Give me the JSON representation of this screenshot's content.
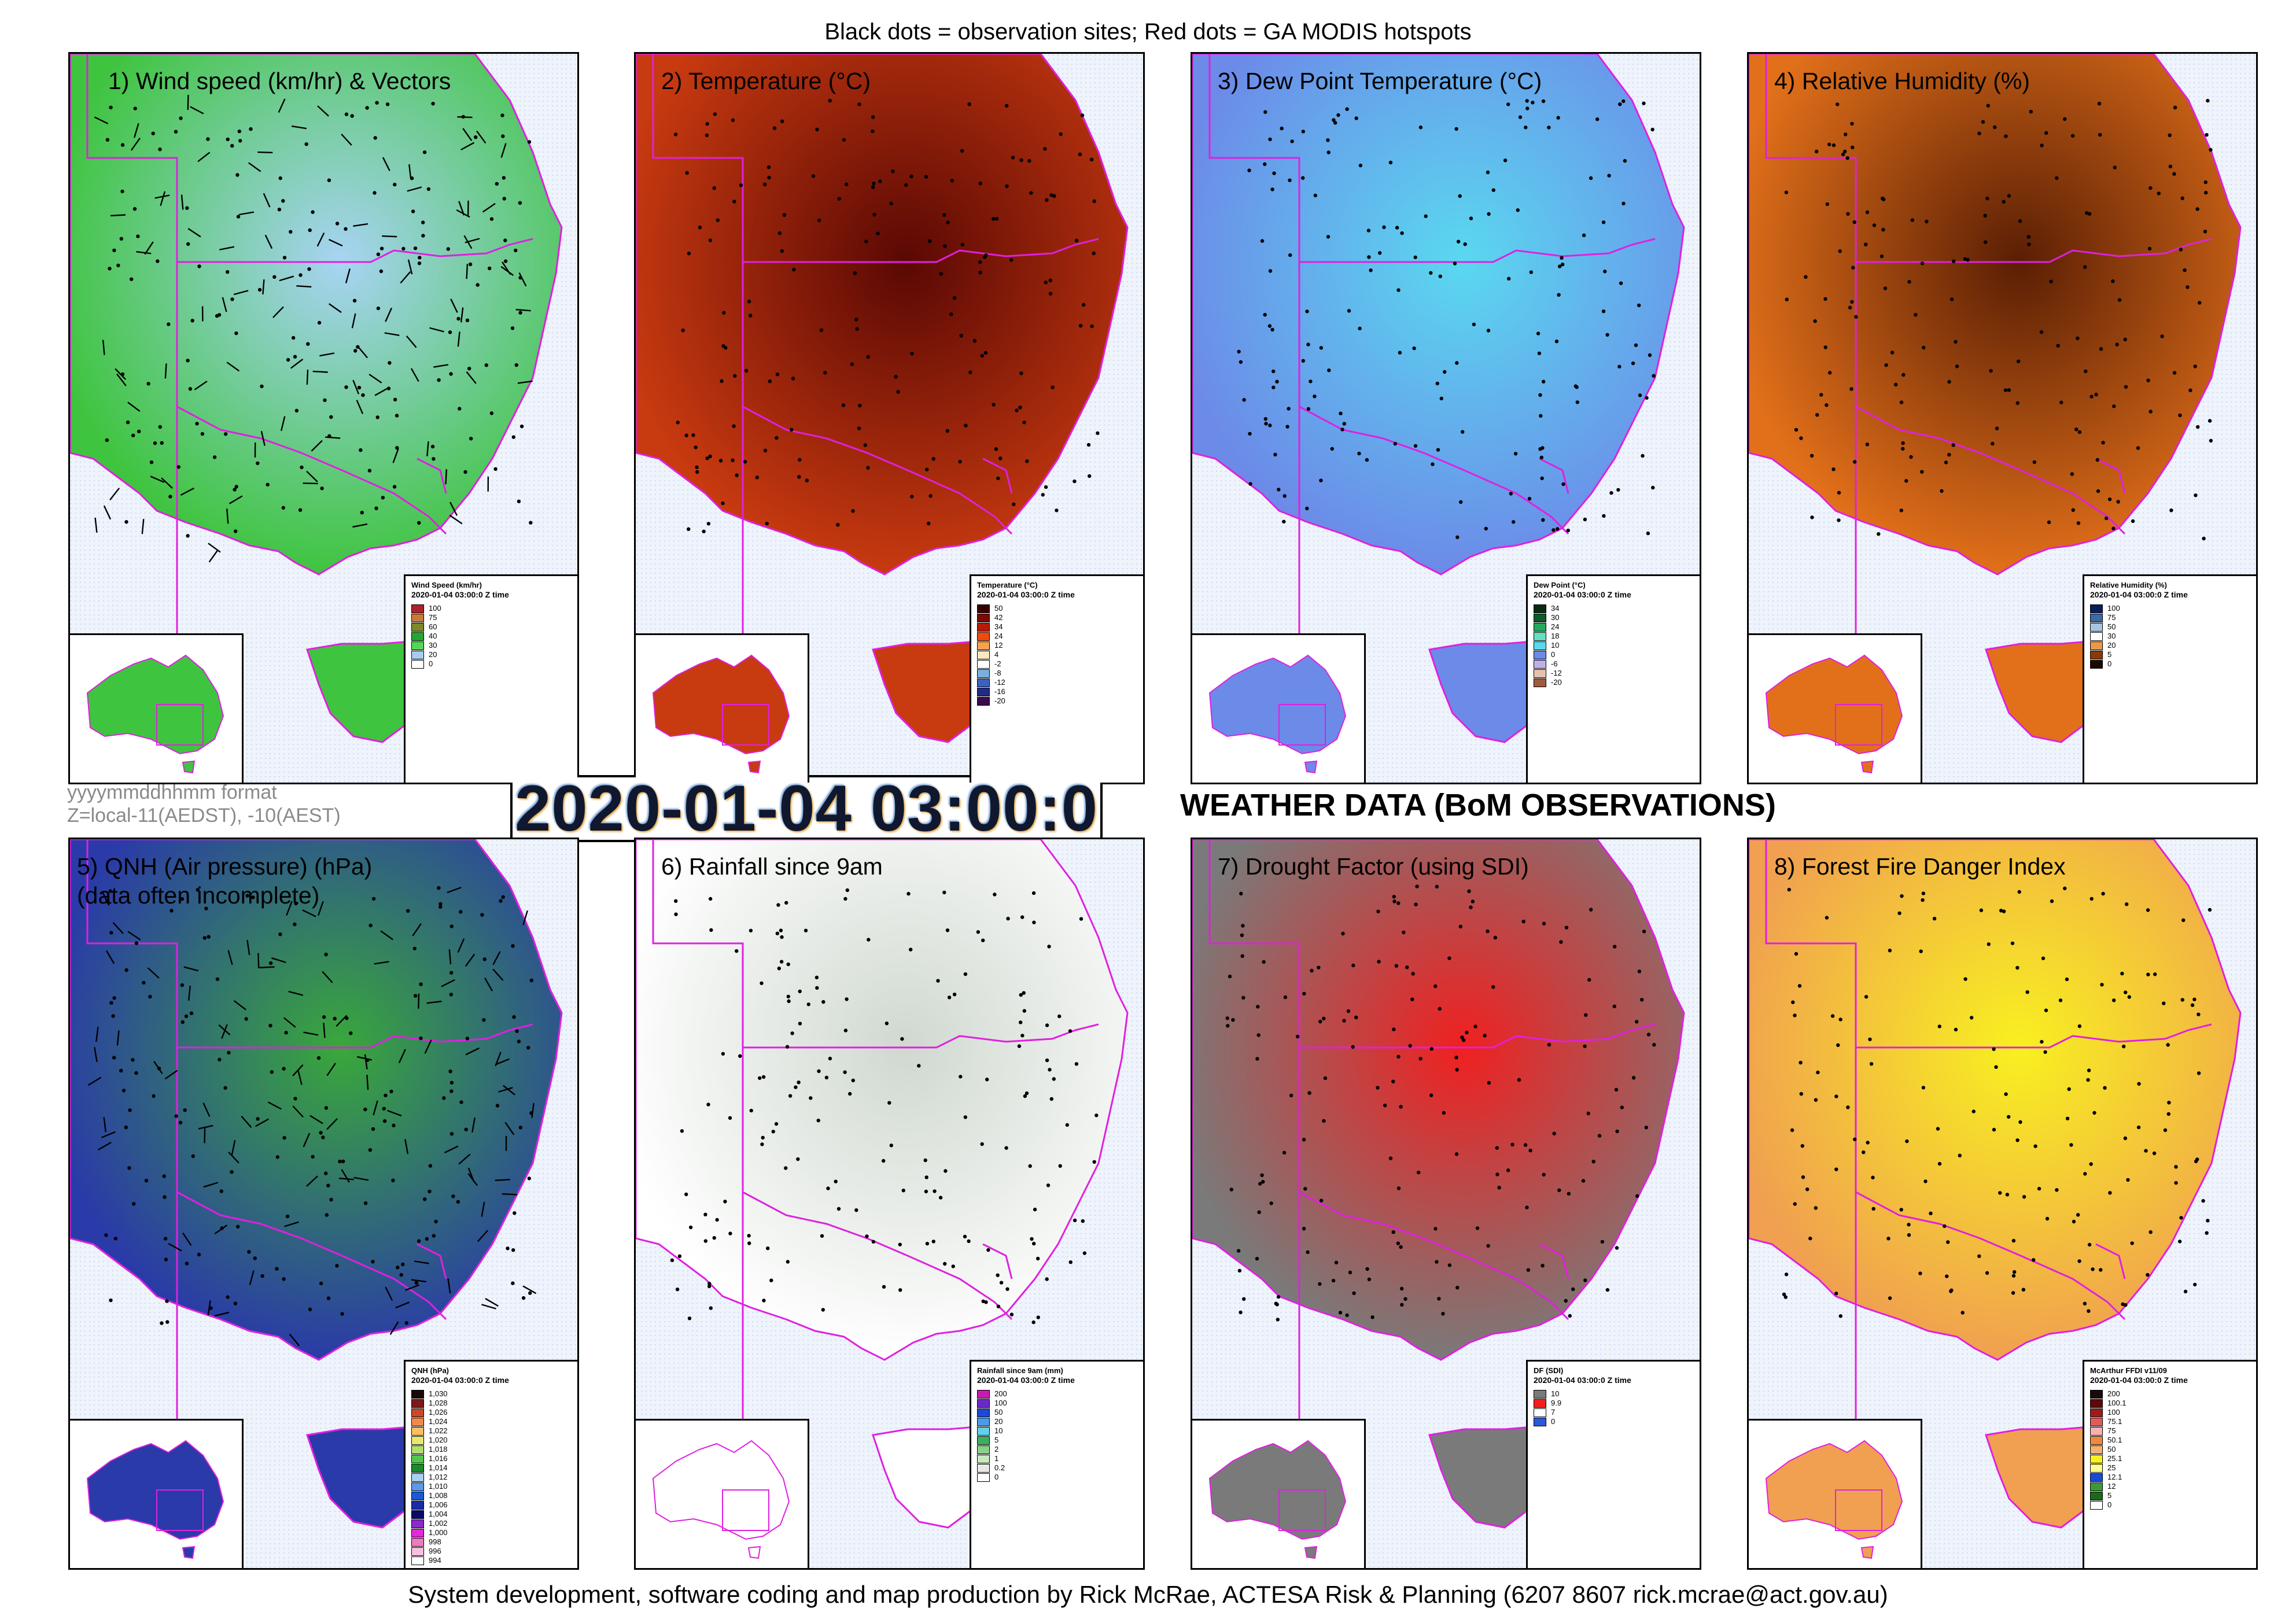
{
  "header_note": "Black dots = observation sites; Red dots = GA MODIS hotspots",
  "footer_credit": "System development, software coding and map production by Rick McRae, ACTESA Risk & Planning (6207 8607 rick.mcrae@act.gov.au)",
  "format_note": [
    "yyyymmddhhmm format",
    "Z=local-11(AEDST), -10(AEST)"
  ],
  "datestamp": "2020-01-04 03:00:0",
  "section_heading": "WEATHER DATA (BoM OBSERVATIONS)",
  "panels": [
    {
      "title": "1) Wind speed (km/hr) & Vectors",
      "land_color": "#3fc43f",
      "accent_color": "#a8d4f4",
      "has_vectors": true,
      "legend_title": "Wind Speed (km/hr)",
      "legend_time": "2020-01-04 03:00:0 Z time",
      "legend": [
        {
          "label": "100",
          "color": "#b0202a"
        },
        {
          "label": "75",
          "color": "#c87a3a"
        },
        {
          "label": "60",
          "color": "#7a8a2a"
        },
        {
          "label": "40",
          "color": "#22a832"
        },
        {
          "label": "30",
          "color": "#56d656"
        },
        {
          "label": "20",
          "color": "#a8ccf0"
        },
        {
          "label": "0",
          "color": "#ffffff"
        }
      ]
    },
    {
      "title": "2) Temperature (°C)",
      "land_color": "#c83a10",
      "accent_color": "#5a0804",
      "has_vectors": false,
      "legend_title": "Temperature (°C)",
      "legend_time": "2020-01-04 03:00:0 Z time",
      "legend": [
        {
          "label": "50",
          "color": "#3a0000"
        },
        {
          "label": "42",
          "color": "#7a0a02"
        },
        {
          "label": "34",
          "color": "#b81a04"
        },
        {
          "label": "24",
          "color": "#f24a0a"
        },
        {
          "label": "12",
          "color": "#f6a050"
        },
        {
          "label": "4",
          "color": "#fbe8c0"
        },
        {
          "label": "-2",
          "color": "#ffffff"
        },
        {
          "label": "-8",
          "color": "#7ab0e0"
        },
        {
          "label": "-12",
          "color": "#3a62c2"
        },
        {
          "label": "-16",
          "color": "#222a88"
        },
        {
          "label": "-20",
          "color": "#3a0a4a"
        }
      ]
    },
    {
      "title": "3) Dew Point Temperature (°C)",
      "land_color": "#6c8ae8",
      "accent_color": "#5ad8f0",
      "has_vectors": false,
      "legend_title": "Dew Point (°C)",
      "legend_time": "2020-01-04 03:00:0 Z time",
      "legend": [
        {
          "label": "34",
          "color": "#0a2a10"
        },
        {
          "label": "30",
          "color": "#0a5a2a"
        },
        {
          "label": "24",
          "color": "#22a860"
        },
        {
          "label": "18",
          "color": "#62e0c0"
        },
        {
          "label": "10",
          "color": "#5ad8f0"
        },
        {
          "label": "0",
          "color": "#6c8ae8"
        },
        {
          "label": "-6",
          "color": "#c0b0e8"
        },
        {
          "label": "-12",
          "color": "#e8c0b0"
        },
        {
          "label": "-20",
          "color": "#a05a3a"
        }
      ]
    },
    {
      "title": "4) Relative Humidity (%)",
      "land_color": "#e2701a",
      "accent_color": "#5a1e04",
      "has_vectors": false,
      "legend_title": "Relative Humidity (%)",
      "legend_time": "2020-01-04 03:00:0 Z time",
      "legend": [
        {
          "label": "100",
          "color": "#0a1e5a"
        },
        {
          "label": "75",
          "color": "#3a6aa8"
        },
        {
          "label": "50",
          "color": "#a8c4e0"
        },
        {
          "label": "30",
          "color": "#ffffff"
        },
        {
          "label": "20",
          "color": "#e89a4a"
        },
        {
          "label": "5",
          "color": "#8a3a0a"
        },
        {
          "label": "0",
          "color": "#1a0a04"
        }
      ]
    },
    {
      "title": "5) QNH (Air pressure) (hPa)\n(data often incomplete)",
      "land_color": "#2a3aa8",
      "accent_color": "#3aa83a",
      "has_vectors": true,
      "legend_title": "QNH (hPa)",
      "legend_time": "2020-01-04 03:00:0 Z time",
      "legend": [
        {
          "label": "1,030",
          "color": "#1a0a0a"
        },
        {
          "label": "1,028",
          "color": "#7a1a1a"
        },
        {
          "label": "1,026",
          "color": "#c84a2a"
        },
        {
          "label": "1,024",
          "color": "#f08a4a"
        },
        {
          "label": "1,022",
          "color": "#f8c060"
        },
        {
          "label": "1,020",
          "color": "#e8e870"
        },
        {
          "label": "1,018",
          "color": "#b0e070"
        },
        {
          "label": "1,016",
          "color": "#52c84a"
        },
        {
          "label": "1,014",
          "color": "#1a8a2a"
        },
        {
          "label": "1,012",
          "color": "#a8d0f0"
        },
        {
          "label": "1,010",
          "color": "#5a9ae8"
        },
        {
          "label": "1,008",
          "color": "#1a5ad8"
        },
        {
          "label": "1,006",
          "color": "#1a2aa8"
        },
        {
          "label": "1,004",
          "color": "#0a0a6a"
        },
        {
          "label": "1,002",
          "color": "#8a2ac8"
        },
        {
          "label": "1,000",
          "color": "#e02ad8"
        },
        {
          "label": "998",
          "color": "#f07ac0"
        },
        {
          "label": "996",
          "color": "#f8c0e0"
        },
        {
          "label": "994",
          "color": "#ffffff"
        }
      ]
    },
    {
      "title": "6) Rainfall since 9am",
      "land_color": "#ffffff",
      "accent_color": "#d0d8d0",
      "has_vectors": false,
      "legend_title": "Rainfall since 9am (mm)",
      "legend_time": "2020-01-04 03:00:0 Z time",
      "legend": [
        {
          "label": "200",
          "color": "#c81ab0"
        },
        {
          "label": "100",
          "color": "#6a2ac8"
        },
        {
          "label": "50",
          "color": "#1a4ad8"
        },
        {
          "label": "20",
          "color": "#4a9ae8"
        },
        {
          "label": "10",
          "color": "#62d0e8"
        },
        {
          "label": "5",
          "color": "#3ab060"
        },
        {
          "label": "2",
          "color": "#8ad08a"
        },
        {
          "label": "1",
          "color": "#c8e8c0"
        },
        {
          "label": "0.2",
          "color": "#e8e8e8"
        },
        {
          "label": "0",
          "color": "#ffffff"
        }
      ]
    },
    {
      "title": "7) Drought Factor (using SDI)",
      "land_color": "#7a7a7a",
      "accent_color": "#f02020",
      "has_vectors": false,
      "legend_title": "DF (SDI)",
      "legend_time": "2020-01-04 03:00:0 Z time",
      "legend": [
        {
          "label": "10",
          "color": "#7a7a7a"
        },
        {
          "label": "9.9",
          "color": "#f02020"
        },
        {
          "label": "7",
          "color": "#ffffff"
        },
        {
          "label": "0",
          "color": "#2a5ad8"
        }
      ]
    },
    {
      "title": "8) Forest Fire Danger Index",
      "land_color": "#f0a050",
      "accent_color": "#f8f020",
      "has_vectors": false,
      "legend_title": "McArthur FFDI v11/09",
      "legend_time": "2020-01-04 03:00:0 Z time",
      "legend": [
        {
          "label": "200",
          "color": "#1a0a0a"
        },
        {
          "label": "100.1",
          "color": "#5a0a0a"
        },
        {
          "label": "100",
          "color": "#a01a1a"
        },
        {
          "label": "75.1",
          "color": "#e05a5a"
        },
        {
          "label": "75",
          "color": "#f8b0b0"
        },
        {
          "label": "50.1",
          "color": "#f08a3a"
        },
        {
          "label": "50",
          "color": "#f8b070"
        },
        {
          "label": "25.1",
          "color": "#f8f020"
        },
        {
          "label": "25",
          "color": "#ffff90"
        },
        {
          "label": "12.1",
          "color": "#1a4ad8"
        },
        {
          "label": "12",
          "color": "#3a9a3a"
        },
        {
          "label": "5",
          "color": "#1a6a1a"
        },
        {
          "label": "0",
          "color": "#ffffff"
        }
      ]
    }
  ]
}
